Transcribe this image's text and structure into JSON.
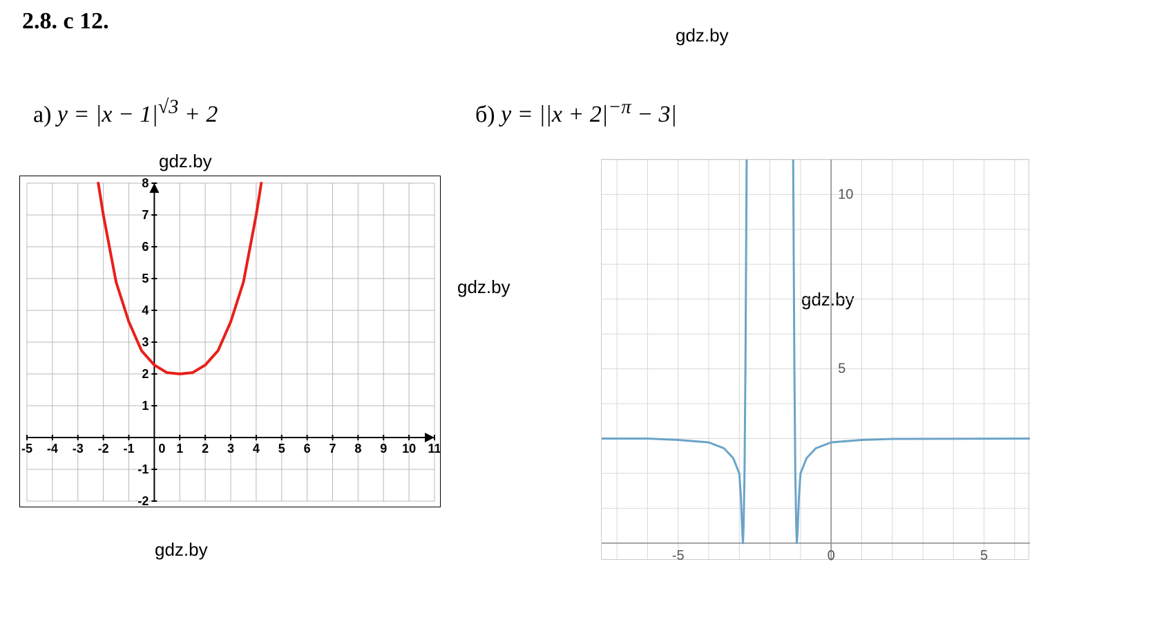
{
  "title": "2.8. с 12.",
  "watermarks": [
    "gdz.by",
    "gdz.by",
    "gdz.by",
    "gdz.by",
    "gdz.by"
  ],
  "partA": {
    "label": "а)",
    "formula_html": "y = |x − 1|<sup>√3</sup> + 2",
    "chart": {
      "type": "line",
      "xlim": [
        -5,
        11
      ],
      "ylim": [
        -2,
        8
      ],
      "xtick_labels": [
        "-5",
        "-4",
        "-3",
        "-2",
        "-1",
        "0",
        "1",
        "2",
        "3",
        "4",
        "5",
        "6",
        "7",
        "8",
        "9",
        "10",
        "11"
      ],
      "ytick_labels": [
        "-2",
        "-1",
        "1",
        "2",
        "3",
        "4",
        "5",
        "6",
        "7"
      ],
      "xtick_step": 1,
      "ytick_step": 1,
      "grid_color": "#b8b8b8",
      "axis_color": "#000000",
      "background": "#ffffff",
      "curve_color": "#e8201b",
      "curve_width": 4,
      "origin_x": 0,
      "origin_y": 0,
      "tick_fontsize": 18,
      "curve_points": [
        [
          -2.2,
          8.0
        ],
        [
          -2,
          7.0
        ],
        [
          -1.5,
          4.89
        ],
        [
          -1,
          3.64
        ],
        [
          -0.5,
          2.73
        ],
        [
          0,
          2.28
        ],
        [
          0.5,
          2.04
        ],
        [
          1,
          2.0
        ],
        [
          1.5,
          2.04
        ],
        [
          2,
          2.28
        ],
        [
          2.5,
          2.73
        ],
        [
          3,
          3.64
        ],
        [
          3.5,
          4.89
        ],
        [
          4,
          7.0
        ],
        [
          4.2,
          8.0
        ]
      ]
    }
  },
  "partB": {
    "label": "б)",
    "formula_html": "y = ||x + 2|<sup>−π</sup> − 3|",
    "chart": {
      "type": "line",
      "xlim": [
        -7.5,
        6.5
      ],
      "ylim": [
        -0.5,
        11
      ],
      "xtick_labels": [
        "-5",
        "0",
        "5"
      ],
      "xtick_positions": [
        -5,
        0,
        5
      ],
      "ytick_labels": [
        "5",
        "10"
      ],
      "ytick_positions": [
        5,
        10
      ],
      "grid_color": "#d8d8d8",
      "axis_color": "#888888",
      "background": "#ffffff",
      "curve_color": "#6ba4c8",
      "curve_width": 3,
      "tick_fontsize": 20,
      "curve_left": [
        [
          -7.5,
          3.0
        ],
        [
          -6,
          3.0
        ],
        [
          -5,
          2.96
        ],
        [
          -4,
          2.89
        ],
        [
          -3.5,
          2.72
        ],
        [
          -3.2,
          2.44
        ],
        [
          -3.0,
          2.0
        ],
        [
          -2.95,
          1.34
        ],
        [
          -2.9,
          0.27
        ],
        [
          -2.88,
          0.0
        ],
        [
          -2.86,
          0.5
        ],
        [
          -2.83,
          2.0
        ],
        [
          -2.8,
          5.0
        ],
        [
          -2.78,
          8.0
        ],
        [
          -2.76,
          11.0
        ]
      ],
      "curve_right": [
        [
          -1.24,
          11.0
        ],
        [
          -1.22,
          8.0
        ],
        [
          -1.2,
          5.0
        ],
        [
          -1.17,
          2.0
        ],
        [
          -1.14,
          0.5
        ],
        [
          -1.12,
          0.0
        ],
        [
          -1.1,
          0.27
        ],
        [
          -1.05,
          1.34
        ],
        [
          -1.0,
          2.0
        ],
        [
          -0.8,
          2.44
        ],
        [
          -0.5,
          2.72
        ],
        [
          0,
          2.89
        ],
        [
          1,
          2.96
        ],
        [
          2,
          2.99
        ],
        [
          6.5,
          3.0
        ]
      ]
    }
  }
}
